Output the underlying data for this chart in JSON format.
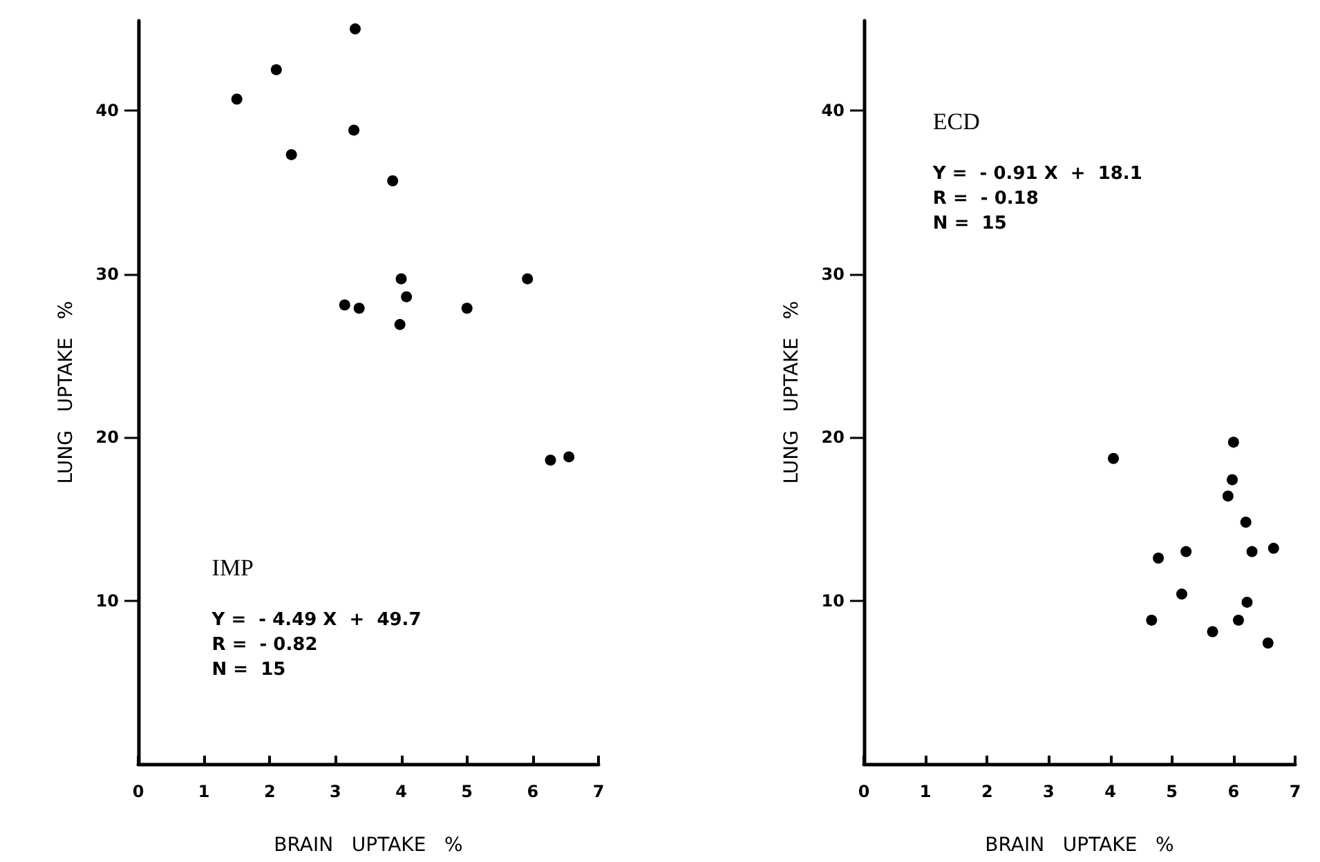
{
  "chart_data": [
    {
      "type": "scatter",
      "xlabel": "BRAIN   UPTAKE   %",
      "ylabel": "LUNG   UPTAKE   %",
      "marker": "circle",
      "xlim": [
        0,
        7
      ],
      "xticks": [
        0,
        1,
        2,
        3,
        4,
        5,
        6,
        7
      ],
      "ylim": [
        0,
        45.5
      ],
      "yticks": [
        10,
        20,
        30,
        40
      ],
      "annotations": [
        "IMP",
        "Y =  - 4.49 X  +  49.7",
        "R =  - 0.82",
        "N =  15"
      ],
      "series": [
        {
          "color": "#000000",
          "x": [
            3.3,
            2.1,
            1.5,
            3.28,
            2.33,
            3.87,
            4.0,
            5.92,
            4.08,
            3.14,
            3.36,
            5.0,
            3.98,
            6.27,
            6.55
          ],
          "values": [
            45.0,
            42.5,
            40.7,
            38.8,
            37.3,
            35.7,
            29.7,
            29.7,
            28.6,
            28.1,
            27.9,
            27.9,
            26.9,
            18.6,
            18.8
          ]
        }
      ]
    },
    {
      "type": "scatter",
      "xlabel": "BRAIN   UPTAKE   %",
      "ylabel": "LUNG   UPTAKE   %",
      "marker": "circle",
      "xlim": [
        0,
        7
      ],
      "xticks": [
        0,
        1,
        2,
        3,
        4,
        5,
        6,
        7
      ],
      "ylim": [
        0,
        45.5
      ],
      "yticks": [
        10,
        20,
        30,
        40
      ],
      "annotations": [
        "ECD",
        "Y =  - 0.91 X  +  18.1",
        "R =  - 0.18",
        "N =  15"
      ],
      "series": [
        {
          "color": "#000000",
          "x": [
            4.05,
            6.0,
            5.98,
            5.91,
            6.2,
            5.23,
            6.3,
            6.65,
            4.78,
            5.16,
            6.22,
            4.67,
            6.08,
            5.66,
            6.56
          ],
          "values": [
            18.7,
            19.7,
            17.4,
            16.4,
            14.8,
            13.0,
            13.0,
            13.2,
            12.6,
            10.4,
            9.9,
            8.8,
            8.8,
            8.1,
            7.4
          ]
        }
      ]
    }
  ]
}
